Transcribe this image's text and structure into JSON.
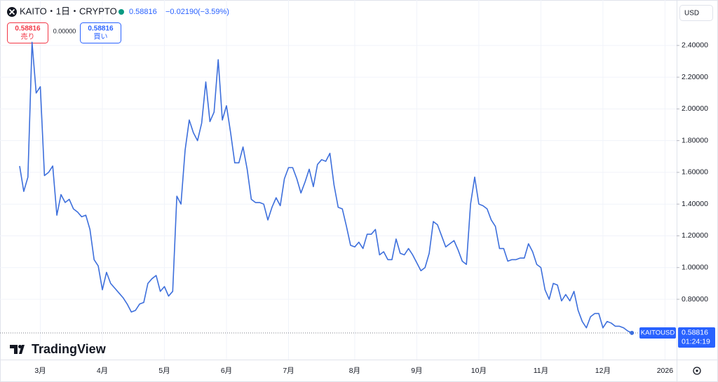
{
  "header": {
    "symbol": "KAITO・1日・CRYPTO",
    "price": "0.58816",
    "change": "−0.02190",
    "change_pct": "(−3.59%)"
  },
  "trade": {
    "sell_price": "0.58816",
    "sell_label": "売り",
    "spread": "0.00000",
    "buy_price": "0.58816",
    "buy_label": "買い"
  },
  "currency": "USD",
  "brand": "TradingView",
  "chart_data": {
    "type": "line",
    "categories": [
      null,
      null,
      null,
      null,
      null,
      "3月",
      null,
      null,
      null,
      null,
      null,
      null,
      null,
      null,
      null,
      null,
      null,
      null,
      null,
      null,
      "4月",
      null,
      null,
      null,
      null,
      null,
      null,
      null,
      null,
      null,
      null,
      null,
      null,
      null,
      null,
      "5月",
      null,
      null,
      null,
      null,
      null,
      null,
      null,
      null,
      null,
      null,
      null,
      null,
      null,
      null,
      "6月",
      null,
      null,
      null,
      null,
      null,
      null,
      null,
      null,
      null,
      null,
      null,
      null,
      null,
      null,
      "7月",
      null,
      null,
      null,
      null,
      null,
      null,
      null,
      null,
      null,
      null,
      null,
      null,
      null,
      null,
      null,
      "8月",
      null,
      null,
      null,
      null,
      null,
      null,
      null,
      null,
      null,
      null,
      null,
      null,
      null,
      null,
      "9月",
      null,
      null,
      null,
      null,
      null,
      null,
      null,
      null,
      null,
      null,
      null,
      null,
      null,
      null,
      "10月",
      null,
      null,
      null,
      null,
      null,
      null,
      null,
      null,
      null,
      null,
      null,
      null,
      null,
      null,
      "11月",
      null,
      null,
      null,
      null,
      null,
      null,
      null,
      null,
      null,
      null,
      null,
      null,
      null,
      null,
      "12月",
      null,
      null,
      null,
      null,
      null,
      null,
      null,
      null,
      null,
      null,
      null,
      null,
      null,
      null,
      "2026"
    ],
    "series": [
      {
        "name": "KAITOUSD",
        "color": "#3d6fdc",
        "values": [
          1.64,
          1.48,
          1.57,
          2.42,
          2.1,
          2.14,
          1.58,
          1.6,
          1.64,
          1.33,
          1.46,
          1.41,
          1.43,
          1.37,
          1.35,
          1.32,
          1.33,
          1.24,
          1.05,
          1.01,
          0.86,
          0.97,
          0.9,
          0.87,
          0.84,
          0.81,
          0.77,
          0.72,
          0.73,
          0.77,
          0.78,
          0.9,
          0.93,
          0.95,
          0.85,
          0.88,
          0.82,
          0.85,
          1.45,
          1.4,
          1.74,
          1.93,
          1.85,
          1.8,
          1.91,
          2.17,
          1.92,
          1.98,
          2.31,
          1.93,
          2.02,
          1.85,
          1.66,
          1.66,
          1.76,
          1.62,
          1.43,
          1.41,
          1.41,
          1.4,
          1.3,
          1.38,
          1.44,
          1.39,
          1.56,
          1.63,
          1.63,
          1.56,
          1.47,
          1.54,
          1.62,
          1.51,
          1.65,
          1.68,
          1.67,
          1.72,
          1.52,
          1.38,
          1.37,
          1.26,
          1.14,
          1.13,
          1.16,
          1.12,
          1.21,
          1.21,
          1.24,
          1.08,
          1.1,
          1.05,
          1.05,
          1.18,
          1.09,
          1.08,
          1.12,
          1.08,
          1.03,
          0.98,
          1.0,
          1.09,
          1.29,
          1.27,
          1.2,
          1.13,
          1.15,
          1.17,
          1.11,
          1.04,
          1.02,
          1.4,
          1.57,
          1.4,
          1.39,
          1.37,
          1.3,
          1.26,
          1.12,
          1.12,
          1.04,
          1.05,
          1.05,
          1.06,
          1.06,
          1.15,
          1.1,
          1.02,
          1.0,
          0.86,
          0.8,
          0.9,
          0.89,
          0.79,
          0.83,
          0.79,
          0.85,
          0.73,
          0.66,
          0.62,
          0.69,
          0.71,
          0.71,
          0.62,
          0.66,
          0.65,
          0.63,
          0.63,
          0.62,
          0.6,
          0.58816,
          null,
          null,
          null,
          null,
          null,
          null,
          null,
          null
        ]
      }
    ],
    "ylim": [
      0.42,
      2.66
    ],
    "yticks": [
      {
        "value": 0.8,
        "label": "0.80000"
      },
      {
        "value": 1.0,
        "label": "1.00000"
      },
      {
        "value": 1.2,
        "label": "1.20000"
      },
      {
        "value": 1.4,
        "label": "1.40000"
      },
      {
        "value": 1.6,
        "label": "1.60000"
      },
      {
        "value": 1.8,
        "label": "1.80000"
      },
      {
        "value": 2.0,
        "label": "2.00000"
      },
      {
        "value": 2.2,
        "label": "2.20000"
      },
      {
        "value": 2.4,
        "label": "2.40000"
      }
    ],
    "grid": true,
    "countdown": "01:24:19"
  }
}
